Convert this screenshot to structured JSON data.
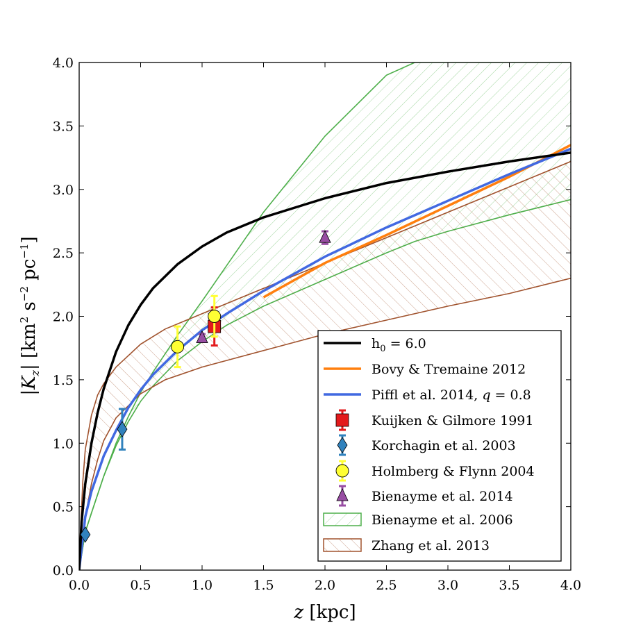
{
  "chart_data": {
    "type": "line",
    "title": "",
    "xlabel": "z [kpc]",
    "ylabel": "|K_z| [km² s⁻² pc⁻¹]",
    "ylabel_parts": {
      "bar_open": "|",
      "var": "K",
      "sub": "z",
      "bar_close": "|",
      "unit_pre": " [km",
      "sup1": "2",
      "mid1": " s",
      "sup2": "−2",
      "mid2": " pc",
      "sup3": "−1",
      "close": "]"
    },
    "xlabel_parts": {
      "var": "z",
      "unit": " [kpc]"
    },
    "xlim": [
      0.0,
      4.0
    ],
    "ylim": [
      0.0,
      4.0
    ],
    "xticks": [
      "0.0",
      "0.5",
      "1.0",
      "1.5",
      "2.0",
      "2.5",
      "3.0",
      "3.5",
      "4.0"
    ],
    "yticks": [
      "0.0",
      "0.5",
      "1.0",
      "1.5",
      "2.0",
      "2.5",
      "3.0",
      "3.5",
      "4.0"
    ],
    "legend_position": "lower-right",
    "series": [
      {
        "name": "h0 = 6.0",
        "label_main": "h",
        "label_sub": "0",
        "label_rest": " = 6.0",
        "kind": "line",
        "color": "#000000",
        "x": [
          0.0,
          0.02,
          0.05,
          0.1,
          0.15,
          0.2,
          0.3,
          0.4,
          0.5,
          0.6,
          0.8,
          1.0,
          1.2,
          1.5,
          2.0,
          2.5,
          3.0,
          3.5,
          4.0
        ],
        "y": [
          0.0,
          0.38,
          0.68,
          1.0,
          1.24,
          1.43,
          1.72,
          1.93,
          2.09,
          2.22,
          2.41,
          2.55,
          2.66,
          2.78,
          2.93,
          3.05,
          3.14,
          3.22,
          3.29
        ]
      },
      {
        "name": "Bovy & Tremaine 2012",
        "kind": "line",
        "color": "#ff7f0e",
        "x": [
          1.5,
          2.0,
          2.5,
          3.0,
          3.5,
          4.0
        ],
        "y": [
          2.15,
          2.42,
          2.64,
          2.87,
          3.1,
          3.35
        ]
      },
      {
        "name": "Piffl et al. 2014, q = 0.8",
        "label_main": "Piffl et al. 2014, ",
        "label_var": "q",
        "label_rest": " = 0.8",
        "kind": "line",
        "color": "#4169e1",
        "x": [
          0.0,
          0.05,
          0.1,
          0.2,
          0.3,
          0.4,
          0.5,
          0.6,
          0.8,
          1.0,
          1.2,
          1.5,
          2.0,
          2.5,
          3.0,
          3.5,
          4.0
        ],
        "y": [
          0.0,
          0.42,
          0.62,
          0.9,
          1.1,
          1.28,
          1.42,
          1.54,
          1.73,
          1.89,
          2.02,
          2.2,
          2.47,
          2.7,
          2.91,
          3.12,
          3.32
        ]
      },
      {
        "name": "Kuijken & Gilmore 1991",
        "kind": "points",
        "marker": "square",
        "color": "#e31a1c",
        "x": [
          1.1
        ],
        "y": [
          1.92
        ],
        "yerr": [
          0.15
        ]
      },
      {
        "name": "Korchagin et al. 2003",
        "kind": "points",
        "marker": "diamond",
        "color": "#3182bd",
        "x": [
          0.05,
          0.35
        ],
        "y": [
          0.28,
          1.11
        ],
        "yerr": [
          0.0,
          0.16
        ]
      },
      {
        "name": "Holmberg & Flynn 2004",
        "kind": "points",
        "marker": "circle",
        "color": "#ffff33",
        "x": [
          0.8,
          1.1
        ],
        "y": [
          1.76,
          2.0
        ],
        "yerr": [
          0.16,
          0.16
        ]
      },
      {
        "name": "Bienayme et al. 2014",
        "kind": "points",
        "marker": "triangle",
        "color": "#984ea3",
        "x": [
          1.0,
          2.0
        ],
        "y": [
          1.83,
          2.62
        ],
        "yerr": [
          0.03,
          0.05
        ]
      },
      {
        "name": "Bienayme et al. 2006",
        "kind": "band",
        "color": "#4daf4a",
        "x": [
          0.0,
          0.05,
          0.1,
          0.2,
          0.3,
          0.4,
          0.5,
          0.6,
          0.8,
          1.0,
          1.2,
          1.5,
          2.0,
          2.5,
          2.73,
          3.0,
          3.5,
          4.0
        ],
        "upper": [
          0.0,
          0.3,
          0.45,
          0.74,
          1.0,
          1.21,
          1.4,
          1.56,
          1.85,
          2.12,
          2.4,
          2.82,
          3.42,
          3.9,
          4.0,
          4.0,
          4.0,
          4.0
        ],
        "lower": [
          0.0,
          0.3,
          0.45,
          0.74,
          0.98,
          1.17,
          1.33,
          1.45,
          1.65,
          1.8,
          1.93,
          2.08,
          2.29,
          2.5,
          2.59,
          2.67,
          2.8,
          2.92
        ]
      },
      {
        "name": "Zhang et al. 2013",
        "kind": "band",
        "color": "#a0522d",
        "x": [
          0.0,
          0.01,
          0.03,
          0.05,
          0.1,
          0.15,
          0.2,
          0.3,
          0.5,
          0.7,
          1.0,
          1.5,
          2.0,
          2.5,
          3.0,
          3.5,
          4.0
        ],
        "upper": [
          0.0,
          0.3,
          0.7,
          0.95,
          1.22,
          1.38,
          1.47,
          1.6,
          1.78,
          1.9,
          2.02,
          2.22,
          2.42,
          2.62,
          2.82,
          3.02,
          3.22
        ],
        "lower": [
          0.0,
          0.1,
          0.25,
          0.42,
          0.68,
          0.87,
          1.02,
          1.2,
          1.39,
          1.5,
          1.6,
          1.73,
          1.86,
          1.97,
          2.08,
          2.18,
          2.3
        ]
      }
    ]
  }
}
